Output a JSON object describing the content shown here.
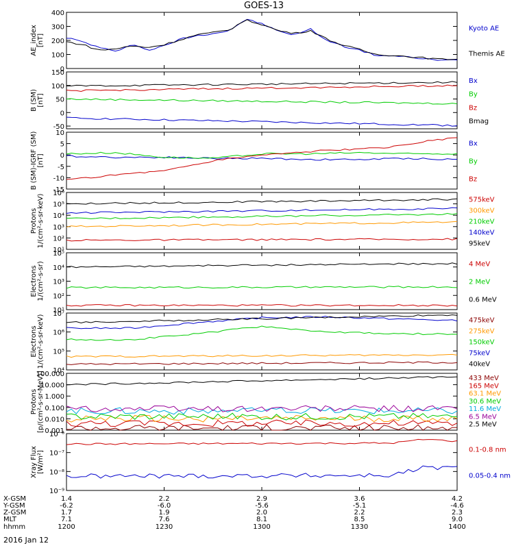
{
  "title": "GOES-13",
  "date_label": "2016 Jan 12",
  "colors": {
    "black": "#000000",
    "blue": "#0000cc",
    "green": "#00cc00",
    "red": "#cc0000",
    "orange": "#ff9900",
    "darkred": "#8b0000",
    "cyan": "#00aadd",
    "purple": "#990099",
    "yellowgreen": "#aacc00"
  },
  "time_axis": {
    "ticks": [
      "1200",
      "1230",
      "1300",
      "1330",
      "1400"
    ]
  },
  "orbit": {
    "labels": [
      "X-GSM",
      "Y-GSM",
      "Z-GSM",
      "MLT",
      "hhmm"
    ],
    "columns": [
      [
        "1.4",
        "-6.2",
        "1.7",
        "7.1",
        "1200"
      ],
      [
        "2.2",
        "-6.0",
        "1.9",
        "7.6",
        "1230"
      ],
      [
        "2.9",
        "-5.6",
        "2.0",
        "8.1",
        "1300"
      ],
      [
        "3.6",
        "-5.1",
        "2.2",
        "8.5",
        "1330"
      ],
      [
        "4.2",
        "-4.6",
        "2.3",
        "9.0",
        "1400"
      ]
    ]
  },
  "chart_data": [
    {
      "type": "line",
      "id": "ae",
      "ylabel": "AE_index\n[nT]",
      "ylim": [
        0,
        400
      ],
      "yticks": [
        "0",
        "100",
        "200",
        "300",
        "400"
      ],
      "ytick_values": [
        0,
        100,
        200,
        300,
        400
      ],
      "log": false,
      "series": [
        {
          "name": "Kyoto AE",
          "color": "blue",
          "x": [
            0,
            5,
            10,
            15,
            20,
            25,
            30,
            35,
            40,
            45,
            50,
            55,
            60,
            65,
            70,
            75,
            80,
            85,
            90,
            95,
            100,
            105,
            110,
            115,
            120
          ],
          "y": [
            220,
            190,
            150,
            120,
            175,
            130,
            160,
            210,
            235,
            250,
            270,
            350,
            320,
            265,
            240,
            280,
            200,
            160,
            130,
            95,
            90,
            80,
            70,
            55,
            65
          ]
        },
        {
          "name": "Themis AE",
          "color": "black",
          "x": [
            0,
            5,
            10,
            15,
            20,
            25,
            30,
            35,
            40,
            45,
            50,
            55,
            60,
            65,
            70,
            75,
            80,
            85,
            90,
            95,
            100,
            105,
            110,
            115,
            120
          ],
          "y": [
            190,
            170,
            130,
            140,
            160,
            150,
            170,
            205,
            240,
            255,
            275,
            345,
            315,
            270,
            250,
            270,
            210,
            165,
            135,
            100,
            95,
            85,
            75,
            65,
            70
          ]
        }
      ]
    },
    {
      "type": "line",
      "id": "bsm",
      "ylabel": "B (SM)\n[nT]",
      "ylim": [
        -60,
        150
      ],
      "yticks": [
        "-50",
        "0",
        "50",
        "100",
        "150"
      ],
      "ytick_values": [
        -50,
        0,
        50,
        100,
        150
      ],
      "log": false,
      "series": [
        {
          "name": "Bx",
          "color": "blue",
          "x": [
            0,
            120
          ],
          "y": [
            -20,
            -48
          ]
        },
        {
          "name": "By",
          "color": "green",
          "x": [
            0,
            120
          ],
          "y": [
            50,
            33
          ]
        },
        {
          "name": "Bz",
          "color": "red",
          "x": [
            0,
            120
          ],
          "y": [
            80,
            100
          ]
        },
        {
          "name": "Bmag",
          "color": "black",
          "x": [
            0,
            120
          ],
          "y": [
            98,
            112
          ]
        }
      ]
    },
    {
      "type": "line",
      "id": "bigrf",
      "ylabel": "B (SM)-IGRF (SM)\n[nT]",
      "ylim": [
        -15,
        10
      ],
      "yticks": [
        "-15",
        "-10",
        "-5",
        "0",
        "5",
        "10"
      ],
      "ytick_values": [
        -15,
        -10,
        -5,
        0,
        5,
        10
      ],
      "log": false,
      "series": [
        {
          "name": "Bx",
          "color": "blue",
          "x": [
            0,
            15,
            30,
            45,
            60,
            75,
            90,
            105,
            120
          ],
          "y": [
            -0.5,
            -1,
            -1,
            -1.5,
            -1.5,
            -2,
            -2,
            -1.5,
            -2
          ]
        },
        {
          "name": "By",
          "color": "green",
          "x": [
            0,
            15,
            30,
            45,
            60,
            75,
            90,
            105,
            120
          ],
          "y": [
            0.5,
            1,
            -1,
            -1.5,
            0.5,
            0.5,
            1,
            0.5,
            0.5
          ]
        },
        {
          "name": "Bz",
          "color": "red",
          "x": [
            0,
            10,
            20,
            30,
            40,
            50,
            60,
            70,
            80,
            90,
            100,
            110,
            120
          ],
          "y": [
            -11,
            -9.5,
            -8,
            -7,
            -4,
            -1.5,
            0,
            1,
            2,
            2.5,
            3.5,
            6,
            7.5
          ]
        }
      ]
    },
    {
      "type": "line",
      "id": "protons_low",
      "ylabel": "Protons\n1/(cm²-s-sr-keV)",
      "ylim_log": [
        1,
        6
      ],
      "yticks": [
        "10¹",
        "10²",
        "10³",
        "10⁴",
        "10⁵",
        "10⁶"
      ],
      "ytick_values": [
        1,
        2,
        3,
        4,
        5,
        6
      ],
      "log": true,
      "series": [
        {
          "name": "575keV",
          "color": "red",
          "x": [
            0,
            120
          ],
          "y": [
            1.8,
            1.9
          ]
        },
        {
          "name": "300keV",
          "color": "orange",
          "x": [
            0,
            120
          ],
          "y": [
            3.0,
            3.4
          ]
        },
        {
          "name": "210keV",
          "color": "green",
          "x": [
            0,
            120
          ],
          "y": [
            3.7,
            4.1
          ]
        },
        {
          "name": "140keV",
          "color": "blue",
          "x": [
            0,
            120
          ],
          "y": [
            4.2,
            4.6
          ]
        },
        {
          "name": "95keV",
          "color": "black",
          "x": [
            0,
            120
          ],
          "y": [
            5.0,
            5.4
          ]
        }
      ]
    },
    {
      "type": "line",
      "id": "electrons_mev",
      "ylabel": "Electrons\n1/(cm²-s-sr)",
      "ylim_log": [
        1,
        5
      ],
      "yticks": [
        "10¹",
        "10²",
        "10³",
        "10⁴",
        "10⁵"
      ],
      "ytick_values": [
        1,
        2,
        3,
        4,
        5
      ],
      "log": true,
      "series": [
        {
          "name": "4 MeV",
          "color": "red",
          "x": [
            0,
            120
          ],
          "y": [
            1.3,
            1.3
          ]
        },
        {
          "name": "2 MeV",
          "color": "green",
          "x": [
            0,
            120
          ],
          "y": [
            2.55,
            2.6
          ]
        },
        {
          "name": "0.6 MeV",
          "color": "black",
          "x": [
            0,
            120
          ],
          "y": [
            4.0,
            4.25
          ]
        }
      ]
    },
    {
      "type": "line",
      "id": "electrons_kev",
      "ylabel": "Electrons\n1/(cm²-s-sr-keV)",
      "ylim_log": [
        4,
        7
      ],
      "yticks": [
        "10⁴",
        "10⁵",
        "10⁶",
        "10⁷"
      ],
      "ytick_values": [
        4,
        5,
        6,
        7
      ],
      "log": true,
      "series": [
        {
          "name": "475keV",
          "color": "darkred",
          "x": [
            0,
            120
          ],
          "y": [
            4.3,
            4.4
          ]
        },
        {
          "name": "275keV",
          "color": "orange",
          "x": [
            0,
            120
          ],
          "y": [
            4.7,
            4.8
          ]
        },
        {
          "name": "150keV",
          "color": "green",
          "x": [
            0,
            20,
            40,
            60,
            80,
            100,
            120
          ],
          "y": [
            5.6,
            5.6,
            5.9,
            6.3,
            6.0,
            5.9,
            5.9
          ]
        },
        {
          "name": "75keV",
          "color": "blue",
          "x": [
            0,
            20,
            40,
            60,
            80,
            100,
            120
          ],
          "y": [
            6.2,
            6.2,
            6.5,
            6.75,
            6.8,
            6.7,
            6.6
          ]
        },
        {
          "name": "40keV",
          "color": "black",
          "x": [
            0,
            120
          ],
          "y": [
            6.5,
            6.9
          ]
        }
      ]
    },
    {
      "type": "line",
      "id": "protons_mev",
      "ylabel": "Protons\n[p/(cm²-s-sr-MeV)]",
      "ylim_log": [
        -3,
        2
      ],
      "yticks": [
        "0.001",
        "0.010",
        "0.100",
        "1.000",
        "10.000",
        "100.000"
      ],
      "ytick_values": [
        -3,
        -2,
        -1,
        0,
        1,
        2
      ],
      "log": true,
      "series": [
        {
          "name": "433 MeV",
          "color": "darkred",
          "x": [
            0,
            120
          ],
          "y": [
            -2.8,
            -2.8
          ]
        },
        {
          "name": "165 MeV",
          "color": "red",
          "x": [
            0,
            120
          ],
          "y": [
            -2.4,
            -2.4
          ]
        },
        {
          "name": "63.1 MeV",
          "color": "orange",
          "x": [
            0,
            120
          ],
          "y": [
            -2.0,
            -2.0
          ]
        },
        {
          "name": "30.6 MeV",
          "color": "green",
          "x": [
            0,
            120
          ],
          "y": [
            -1.8,
            -1.8
          ]
        },
        {
          "name": "11.6 MeV",
          "color": "cyan",
          "x": [
            0,
            120
          ],
          "y": [
            -1.3,
            -1.3
          ]
        },
        {
          "name": "6.5 MeV",
          "color": "purple",
          "x": [
            0,
            120
          ],
          "y": [
            -1.1,
            -1.1
          ]
        },
        {
          "name": "2.5 MeV",
          "color": "black",
          "x": [
            0,
            120
          ],
          "y": [
            1.0,
            1.7
          ]
        }
      ]
    },
    {
      "type": "line",
      "id": "xray",
      "ylabel": "Xray Flux\n[W/m²]",
      "ylim_log": [
        -9,
        -6
      ],
      "yticks": [
        "10⁻⁹",
        "10⁻⁸",
        "10⁻⁷",
        "10⁻⁶"
      ],
      "ytick_values": [
        -9,
        -8,
        -7,
        -6
      ],
      "log": true,
      "series": [
        {
          "name": "0.1-0.8 nm",
          "color": "red",
          "x": [
            0,
            100,
            110,
            120
          ],
          "y": [
            -6.55,
            -6.5,
            -6.3,
            -6.4
          ]
        },
        {
          "name": "0.05-0.4 nm",
          "color": "blue",
          "x": [
            0,
            100,
            110,
            120
          ],
          "y": [
            -8.25,
            -8.2,
            -7.8,
            -7.8
          ]
        }
      ]
    }
  ]
}
